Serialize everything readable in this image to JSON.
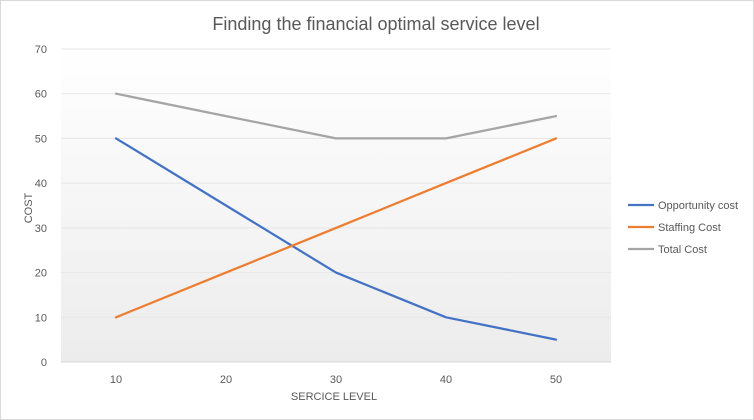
{
  "chart_data": {
    "type": "line",
    "title": "Finding the financial  optimal  service level",
    "xlabel": "SERCICE LEVEL",
    "ylabel": "COST",
    "categories": [
      "10",
      "20",
      "30",
      "40",
      "50"
    ],
    "yticks": [
      "0",
      "10",
      "20",
      "30",
      "40",
      "50",
      "60",
      "70"
    ],
    "ylim": [
      0,
      70
    ],
    "grid": true,
    "legend_position": "right",
    "series": [
      {
        "name": "Opportunity cost",
        "color": "#4472c4",
        "values": [
          50,
          35,
          20,
          10,
          5
        ]
      },
      {
        "name": "Staffing Cost",
        "color": "#ed7d31",
        "values": [
          10,
          20,
          30,
          40,
          50
        ]
      },
      {
        "name": "Total Cost",
        "color": "#a5a5a5",
        "values": [
          60,
          55,
          50,
          50,
          55
        ]
      }
    ]
  }
}
